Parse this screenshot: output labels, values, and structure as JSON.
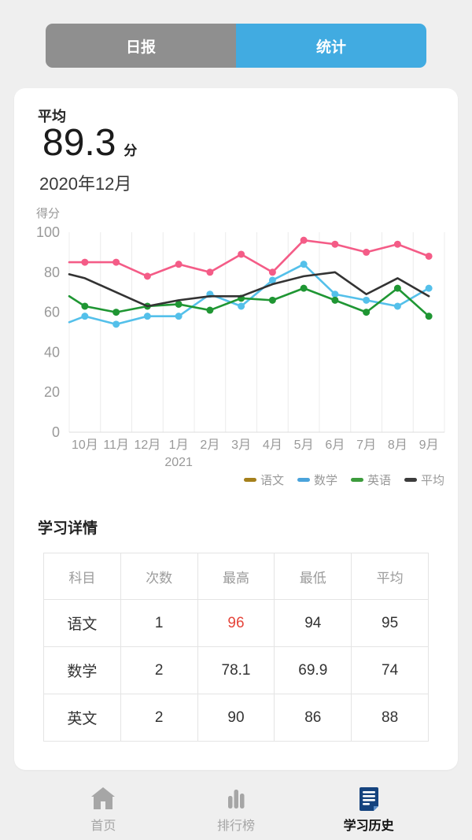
{
  "tabs": {
    "daily": "日报",
    "stats": "统计"
  },
  "summary": {
    "label": "平均",
    "value": "89.3",
    "unit": "分",
    "period": "2020年12月"
  },
  "chart_data": {
    "type": "line",
    "ylabel": "得分",
    "x_categories": [
      "10月",
      "11月",
      "12月",
      "1月",
      "2月",
      "3月",
      "4月",
      "5月",
      "6月",
      "7月",
      "8月",
      "9月"
    ],
    "x_sub_label": "2021",
    "x_sub_under": "1月",
    "ylim": [
      0,
      100
    ],
    "y_ticks": [
      0,
      20,
      40,
      60,
      80,
      100
    ],
    "grid": "vertical-gridlines-only",
    "legend_position": "bottom-right",
    "series": [
      {
        "name": "语文",
        "color": "#f45c87",
        "legend_color": "#a5801c",
        "symbols": true,
        "axis_start": 85,
        "values": [
          85,
          85,
          78,
          84,
          80,
          89,
          80,
          96,
          94,
          90,
          94,
          88
        ]
      },
      {
        "name": "数学",
        "color": "#54c0ea",
        "legend_color": "#4aa3db",
        "symbols": true,
        "axis_start": 55,
        "values": [
          58,
          54,
          58,
          58,
          69,
          63,
          76,
          84,
          69,
          66,
          63,
          72
        ]
      },
      {
        "name": "英语",
        "color": "#1f9633",
        "legend_color": "#3d9c3d",
        "symbols": true,
        "axis_start": 68,
        "values": [
          63,
          60,
          63,
          64,
          61,
          67,
          66,
          72,
          66,
          60,
          72,
          58
        ]
      },
      {
        "name": "平均",
        "color": "#333333",
        "legend_color": "#3c3c3c",
        "symbols": false,
        "axis_start": 79,
        "values": [
          77,
          70,
          63,
          66,
          68,
          68,
          74,
          78,
          80,
          69,
          77,
          68
        ]
      }
    ]
  },
  "details": {
    "heading": "学习详情",
    "table": {
      "headers": [
        "科目",
        "次数",
        "最高",
        "最低",
        "平均"
      ],
      "rows": [
        {
          "cells": [
            "语文",
            "1",
            "96",
            "94",
            "95"
          ]
        },
        {
          "cells": [
            "数学",
            "2",
            "78.1",
            "69.9",
            "74"
          ]
        },
        {
          "cells": [
            "英文",
            "2",
            "90",
            "86",
            "88"
          ]
        }
      ],
      "highlight_value": "96",
      "highlight_color": "#e5453b"
    }
  },
  "bottom_nav": {
    "items": [
      {
        "label": "首页",
        "icon": "home-icon",
        "active": false
      },
      {
        "label": "排行榜",
        "icon": "bar-chart-icon",
        "active": false
      },
      {
        "label": "学习历史",
        "icon": "document-icon",
        "active": true
      }
    ]
  },
  "colors": {
    "page_background": "#efefef",
    "accent_blue": "#41abe1",
    "inactive_gray": "#8f8f8f",
    "axis_text_gray": "#999999",
    "highlight_red": "#e5453b",
    "nav_active_navy": "#15437e"
  }
}
